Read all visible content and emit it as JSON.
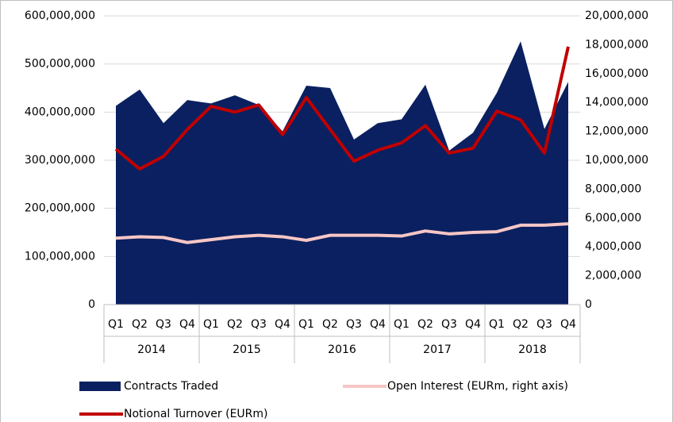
{
  "chart_data": {
    "type": "area_line",
    "categories": [
      "Q1",
      "Q2",
      "Q3",
      "Q4",
      "Q1",
      "Q2",
      "Q3",
      "Q4",
      "Q1",
      "Q2",
      "Q3",
      "Q4",
      "Q1",
      "Q2",
      "Q3",
      "Q4",
      "Q1",
      "Q2",
      "Q3",
      "Q4"
    ],
    "groups": [
      "2014",
      "2015",
      "2016",
      "2017",
      "2018"
    ],
    "series": [
      {
        "name": "Contracts Traded",
        "kind": "area",
        "color": "#0a2060",
        "values": [
          413000000,
          447000000,
          377000000,
          425000000,
          418000000,
          435000000,
          415000000,
          360000000,
          455000000,
          450000000,
          343000000,
          377000000,
          385000000,
          457000000,
          320000000,
          357000000,
          440000000,
          547000000,
          365000000,
          463000000
        ]
      },
      {
        "name": "Open Interest (EURm, right axis)",
        "kind": "line",
        "axis": "y2",
        "color": "#f7c6c6",
        "values": [
          4600000,
          4700000,
          4650000,
          4300000,
          4500000,
          4700000,
          4800000,
          4700000,
          4450000,
          4800000,
          4800000,
          4800000,
          4750000,
          5100000,
          4900000,
          5000000,
          5050000,
          5500000,
          5500000,
          5600000
        ]
      },
      {
        "name": "Notional Turnover (EURm)",
        "kind": "line",
        "color": "#c00000",
        "values": [
          323000000,
          282000000,
          308000000,
          364000000,
          412000000,
          400000000,
          415000000,
          353000000,
          430000000,
          364000000,
          298000000,
          321000000,
          336000000,
          372000000,
          315000000,
          325000000,
          402000000,
          384000000,
          315000000,
          536000000
        ]
      }
    ],
    "ylim": [
      0,
      600000000
    ],
    "yticks": [
      0,
      {
        "value": 100000000,
        "label": "100,000,000"
      },
      {
        "value": 200000000,
        "label": "200,000,000"
      },
      {
        "value": 300000000,
        "label": "300,000,000"
      },
      {
        "value": 400000000,
        "label": "400,000,000"
      },
      {
        "value": 500000000,
        "label": "500,000,000"
      },
      {
        "value": 600000000,
        "label": "600,000,000"
      }
    ],
    "y2lim": [
      0,
      20000000
    ],
    "y2ticks": [
      0,
      {
        "value": 2000000,
        "label": "2,000,000"
      },
      {
        "value": 4000000,
        "label": "4,000,000"
      },
      {
        "value": 6000000,
        "label": "6,000,000"
      },
      {
        "value": 8000000,
        "label": "8,000,000"
      },
      {
        "value": 10000000,
        "label": "10,000,000"
      },
      {
        "value": 12000000,
        "label": "12,000,000"
      },
      {
        "value": 14000000,
        "label": "14,000,000"
      },
      {
        "value": 16000000,
        "label": "16,000,000"
      },
      {
        "value": 18000000,
        "label": "18,000,000"
      },
      {
        "value": 20000000,
        "label": "20,000,000"
      }
    ],
    "grid": true
  }
}
